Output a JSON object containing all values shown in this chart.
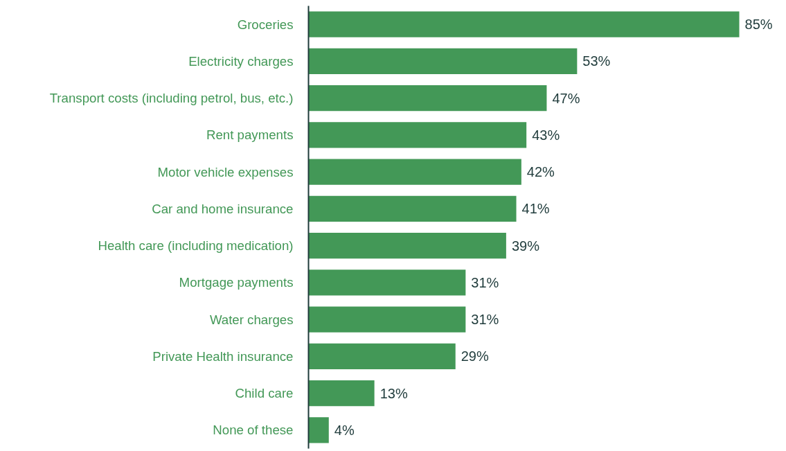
{
  "chart_data": {
    "type": "bar",
    "orientation": "horizontal",
    "categories": [
      "Groceries",
      "Electricity charges",
      "Transport costs (including petrol, bus, etc.)",
      "Rent payments",
      "Motor vehicle expenses",
      "Car and home insurance",
      "Health care (including medication)",
      "Mortgage payments",
      "Water charges",
      "Private Health insurance",
      "Child care",
      "None of these"
    ],
    "values": [
      85,
      53,
      47,
      43,
      42,
      41,
      39,
      31,
      31,
      29,
      13,
      4
    ],
    "value_labels": [
      "85%",
      "53%",
      "47%",
      "43%",
      "42%",
      "41%",
      "39%",
      "31%",
      "31%",
      "29%",
      "13%",
      "4%"
    ],
    "color": "#439857",
    "grid": false
  }
}
